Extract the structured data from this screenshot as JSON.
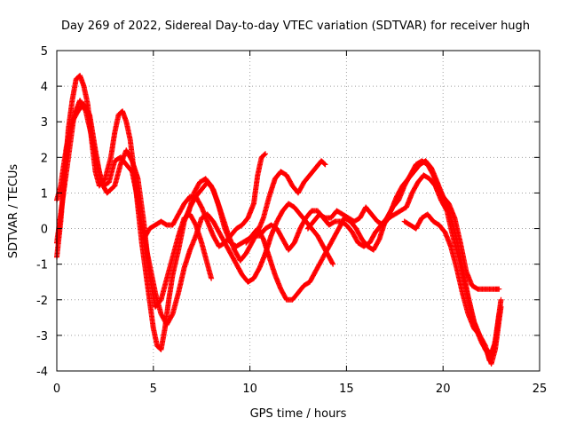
{
  "chart_data": {
    "type": "scatter",
    "title": "Day 269 of 2022, Sidereal Day-to-day VTEC variation (SDTVAR) for receiver hugh",
    "xlabel": "GPS time / hours",
    "ylabel": "SDTVAR / TECUs",
    "xlim": [
      0,
      25
    ],
    "ylim": [
      -4,
      5
    ],
    "xticks": [
      "0",
      "5",
      "10",
      "15",
      "20",
      "25"
    ],
    "yticks": [
      "-4",
      "-3",
      "-2",
      "-1",
      "0",
      "1",
      "2",
      "3",
      "4",
      "5"
    ],
    "grid": true,
    "legend": "none",
    "marker": "+",
    "color": "#ff0000",
    "series": [
      {
        "name": "track-1",
        "points": [
          [
            0.0,
            -0.8
          ],
          [
            0.2,
            0.2
          ],
          [
            0.4,
            1.5
          ],
          [
            0.6,
            2.8
          ],
          [
            0.8,
            3.6
          ],
          [
            1.0,
            4.2
          ],
          [
            1.2,
            4.3
          ],
          [
            1.4,
            4.0
          ],
          [
            1.6,
            3.5
          ],
          [
            1.8,
            2.5
          ],
          [
            2.0,
            1.6
          ],
          [
            2.2,
            1.2
          ],
          [
            2.5,
            1.4
          ],
          [
            2.8,
            2.0
          ],
          [
            3.0,
            2.7
          ],
          [
            3.2,
            3.2
          ],
          [
            3.4,
            3.3
          ],
          [
            3.6,
            3.0
          ],
          [
            3.8,
            2.5
          ],
          [
            4.0,
            1.6
          ],
          [
            4.2,
            0.6
          ],
          [
            4.4,
            -0.4
          ],
          [
            4.6,
            -1.2
          ],
          [
            4.8,
            -2.0
          ],
          [
            5.0,
            -2.8
          ],
          [
            5.2,
            -3.3
          ],
          [
            5.4,
            -3.4
          ],
          [
            5.6,
            -2.8
          ],
          [
            5.8,
            -2.0
          ],
          [
            6.0,
            -1.3
          ],
          [
            6.3,
            -0.6
          ],
          [
            6.6,
            0.2
          ],
          [
            6.9,
            0.6
          ],
          [
            7.2,
            0.9
          ],
          [
            7.5,
            1.1
          ],
          [
            7.8,
            1.3
          ],
          [
            8.1,
            1.1
          ],
          [
            8.4,
            0.6
          ],
          [
            8.7,
            0.0
          ],
          [
            9.0,
            -0.4
          ],
          [
            9.3,
            -0.5
          ],
          [
            9.6,
            -0.4
          ],
          [
            9.9,
            -0.3
          ],
          [
            10.2,
            -0.2
          ],
          [
            10.5,
            -0.2
          ],
          [
            10.8,
            0.0
          ],
          [
            11.1,
            0.1
          ],
          [
            11.4,
            0.0
          ],
          [
            11.7,
            -0.3
          ],
          [
            12.0,
            -0.6
          ],
          [
            12.3,
            -0.4
          ],
          [
            12.6,
            0.0
          ],
          [
            12.9,
            0.3
          ],
          [
            13.2,
            0.5
          ],
          [
            13.5,
            0.5
          ],
          [
            13.8,
            0.3
          ],
          [
            14.1,
            0.1
          ],
          [
            14.4,
            0.2
          ],
          [
            14.7,
            0.2
          ],
          [
            15.0,
            0.1
          ],
          [
            15.3,
            -0.1
          ],
          [
            15.6,
            -0.4
          ],
          [
            15.9,
            -0.5
          ],
          [
            16.2,
            -0.4
          ],
          [
            16.5,
            -0.1
          ],
          [
            16.8,
            0.1
          ],
          [
            17.1,
            0.3
          ],
          [
            17.4,
            0.6
          ],
          [
            17.7,
            0.8
          ],
          [
            18.0,
            1.2
          ],
          [
            18.3,
            1.5
          ],
          [
            18.6,
            1.8
          ],
          [
            18.9,
            1.9
          ],
          [
            19.2,
            1.8
          ],
          [
            19.5,
            1.5
          ],
          [
            19.8,
            1.1
          ],
          [
            20.1,
            0.8
          ],
          [
            20.4,
            0.3
          ],
          [
            20.7,
            -0.3
          ],
          [
            21.0,
            -1.1
          ],
          [
            21.3,
            -1.9
          ],
          [
            21.6,
            -2.6
          ],
          [
            21.9,
            -3.0
          ],
          [
            22.2,
            -3.3
          ],
          [
            22.4,
            -3.7
          ],
          [
            22.6,
            -3.5
          ],
          [
            22.8,
            -2.8
          ],
          [
            23.0,
            -2.0
          ]
        ]
      },
      {
        "name": "track-2",
        "points": [
          [
            0.0,
            -0.4
          ],
          [
            0.3,
            0.8
          ],
          [
            0.6,
            2.0
          ],
          [
            0.9,
            3.2
          ],
          [
            1.2,
            3.6
          ],
          [
            1.5,
            3.3
          ],
          [
            1.8,
            2.6
          ],
          [
            2.1,
            1.8
          ],
          [
            2.4,
            1.2
          ],
          [
            2.7,
            1.3
          ],
          [
            3.0,
            1.9
          ],
          [
            3.3,
            2.0
          ],
          [
            3.6,
            1.8
          ],
          [
            3.9,
            1.6
          ],
          [
            4.2,
            0.8
          ],
          [
            4.5,
            -0.2
          ],
          [
            4.8,
            -1.0
          ],
          [
            5.1,
            -1.8
          ],
          [
            5.4,
            -2.4
          ],
          [
            5.7,
            -2.7
          ],
          [
            6.0,
            -2.4
          ],
          [
            6.3,
            -1.8
          ],
          [
            6.6,
            -1.1
          ],
          [
            6.9,
            -0.6
          ],
          [
            7.2,
            -0.2
          ],
          [
            7.5,
            0.3
          ],
          [
            7.8,
            0.4
          ],
          [
            8.1,
            0.2
          ],
          [
            8.4,
            -0.1
          ],
          [
            8.7,
            -0.4
          ],
          [
            9.0,
            -0.7
          ],
          [
            9.3,
            -1.0
          ],
          [
            9.6,
            -1.3
          ],
          [
            9.9,
            -1.5
          ],
          [
            10.2,
            -1.4
          ],
          [
            10.5,
            -1.1
          ],
          [
            10.8,
            -0.7
          ],
          [
            11.1,
            -0.2
          ],
          [
            11.4,
            0.2
          ],
          [
            11.7,
            0.5
          ],
          [
            12.0,
            0.7
          ],
          [
            12.3,
            0.6
          ],
          [
            12.6,
            0.4
          ],
          [
            12.9,
            0.2
          ],
          [
            13.2,
            0.0
          ],
          [
            13.5,
            -0.2
          ],
          [
            13.8,
            -0.5
          ],
          [
            14.1,
            -0.8
          ],
          [
            14.3,
            -1.0
          ]
        ]
      },
      {
        "name": "track-3",
        "points": [
          [
            0.0,
            0.8
          ],
          [
            0.2,
            1.2
          ],
          [
            0.5,
            2.3
          ],
          [
            0.8,
            3.0
          ],
          [
            1.1,
            3.3
          ],
          [
            1.4,
            3.5
          ],
          [
            1.7,
            3.2
          ],
          [
            2.0,
            2.2
          ],
          [
            2.3,
            1.3
          ],
          [
            2.6,
            1.0
          ],
          [
            3.0,
            1.2
          ],
          [
            3.3,
            1.8
          ],
          [
            3.6,
            2.2
          ],
          [
            3.9,
            1.9
          ],
          [
            4.2,
            1.4
          ],
          [
            4.5,
            0.2
          ],
          [
            4.8,
            -1.3
          ],
          [
            5.1,
            -2.2
          ],
          [
            5.4,
            -2.0
          ],
          [
            5.7,
            -1.4
          ],
          [
            6.0,
            -0.8
          ],
          [
            6.3,
            -0.2
          ],
          [
            6.6,
            0.3
          ],
          [
            6.9,
            0.4
          ],
          [
            7.2,
            0.1
          ],
          [
            7.5,
            -0.4
          ],
          [
            7.8,
            -1.0
          ],
          [
            8.0,
            -1.4
          ]
        ]
      },
      {
        "name": "track-4",
        "points": [
          [
            4.5,
            -0.3
          ],
          [
            4.8,
            0.0
          ],
          [
            5.1,
            0.1
          ],
          [
            5.4,
            0.2
          ],
          [
            5.7,
            0.1
          ],
          [
            6.0,
            0.1
          ],
          [
            6.3,
            0.4
          ],
          [
            6.6,
            0.7
          ],
          [
            6.9,
            0.9
          ],
          [
            7.2,
            0.9
          ],
          [
            7.5,
            0.6
          ],
          [
            7.8,
            0.2
          ],
          [
            8.1,
            -0.2
          ],
          [
            8.4,
            -0.5
          ],
          [
            8.7,
            -0.4
          ],
          [
            9.0,
            -0.2
          ],
          [
            9.3,
            0.0
          ],
          [
            9.6,
            0.1
          ],
          [
            9.9,
            0.3
          ],
          [
            10.2,
            0.7
          ],
          [
            10.4,
            1.5
          ],
          [
            10.6,
            2.0
          ],
          [
            10.8,
            2.1
          ]
        ]
      },
      {
        "name": "track-5",
        "points": [
          [
            6.8,
            0.4
          ],
          [
            7.1,
            1.0
          ],
          [
            7.4,
            1.3
          ],
          [
            7.7,
            1.4
          ],
          [
            8.0,
            1.2
          ],
          [
            8.3,
            0.8
          ],
          [
            8.6,
            0.3
          ],
          [
            8.9,
            -0.2
          ],
          [
            9.2,
            -0.6
          ],
          [
            9.5,
            -0.9
          ],
          [
            9.8,
            -0.7
          ],
          [
            10.1,
            -0.4
          ],
          [
            10.4,
            -0.1
          ],
          [
            10.7,
            0.3
          ],
          [
            11.0,
            0.9
          ],
          [
            11.3,
            1.4
          ],
          [
            11.6,
            1.6
          ],
          [
            11.9,
            1.5
          ],
          [
            12.2,
            1.2
          ],
          [
            12.5,
            1.0
          ],
          [
            12.8,
            1.3
          ],
          [
            13.1,
            1.5
          ],
          [
            13.4,
            1.7
          ],
          [
            13.7,
            1.9
          ],
          [
            13.9,
            1.8
          ]
        ]
      },
      {
        "name": "track-6",
        "points": [
          [
            9.8,
            -0.4
          ],
          [
            10.1,
            -0.2
          ],
          [
            10.4,
            0.0
          ],
          [
            10.7,
            -0.3
          ],
          [
            11.0,
            -0.8
          ],
          [
            11.3,
            -1.3
          ],
          [
            11.6,
            -1.7
          ],
          [
            11.9,
            -2.0
          ],
          [
            12.2,
            -2.0
          ],
          [
            12.5,
            -1.8
          ],
          [
            12.8,
            -1.6
          ],
          [
            13.1,
            -1.5
          ],
          [
            13.4,
            -1.2
          ],
          [
            13.7,
            -0.9
          ],
          [
            14.0,
            -0.6
          ],
          [
            14.3,
            -0.3
          ],
          [
            14.6,
            0.0
          ],
          [
            14.9,
            0.3
          ],
          [
            15.2,
            0.2
          ],
          [
            15.5,
            0.0
          ],
          [
            15.8,
            -0.3
          ],
          [
            16.1,
            -0.5
          ],
          [
            16.4,
            -0.6
          ],
          [
            16.7,
            -0.3
          ],
          [
            17.0,
            0.2
          ],
          [
            17.3,
            0.5
          ],
          [
            17.6,
            0.9
          ],
          [
            17.9,
            1.2
          ],
          [
            18.2,
            1.4
          ],
          [
            18.5,
            1.6
          ],
          [
            18.8,
            1.8
          ],
          [
            19.1,
            1.9
          ],
          [
            19.4,
            1.7
          ],
          [
            19.7,
            1.3
          ],
          [
            20.0,
            0.9
          ],
          [
            20.3,
            0.7
          ],
          [
            20.6,
            0.3
          ],
          [
            20.9,
            -0.4
          ],
          [
            21.2,
            -1.2
          ],
          [
            21.5,
            -1.6
          ],
          [
            21.8,
            -1.7
          ],
          [
            22.1,
            -1.7
          ],
          [
            22.4,
            -1.7
          ],
          [
            22.7,
            -1.7
          ],
          [
            22.9,
            -1.7
          ]
        ]
      },
      {
        "name": "track-7",
        "points": [
          [
            13.0,
            0.0
          ],
          [
            13.3,
            0.2
          ],
          [
            13.6,
            0.4
          ],
          [
            13.9,
            0.3
          ],
          [
            14.2,
            0.3
          ],
          [
            14.5,
            0.5
          ],
          [
            14.8,
            0.4
          ],
          [
            15.1,
            0.3
          ],
          [
            15.4,
            0.2
          ],
          [
            15.7,
            0.3
          ],
          [
            16.0,
            0.6
          ],
          [
            16.3,
            0.4
          ],
          [
            16.6,
            0.2
          ],
          [
            16.9,
            0.1
          ],
          [
            17.2,
            0.3
          ],
          [
            17.5,
            0.4
          ],
          [
            17.8,
            0.5
          ],
          [
            18.1,
            0.6
          ],
          [
            18.4,
            1.0
          ],
          [
            18.7,
            1.3
          ],
          [
            19.0,
            1.5
          ],
          [
            19.3,
            1.4
          ],
          [
            19.6,
            1.2
          ],
          [
            19.9,
            0.8
          ],
          [
            20.2,
            0.5
          ],
          [
            20.5,
            -0.2
          ],
          [
            20.8,
            -0.8
          ],
          [
            21.1,
            -1.5
          ],
          [
            21.4,
            -2.2
          ],
          [
            21.7,
            -2.8
          ],
          [
            22.0,
            -3.2
          ],
          [
            22.3,
            -3.5
          ],
          [
            22.5,
            -3.8
          ],
          [
            22.7,
            -3.4
          ],
          [
            22.9,
            -2.6
          ],
          [
            23.0,
            -2.2
          ]
        ]
      },
      {
        "name": "track-8",
        "points": [
          [
            18.0,
            0.2
          ],
          [
            18.3,
            0.1
          ],
          [
            18.6,
            0.0
          ],
          [
            18.9,
            0.3
          ],
          [
            19.2,
            0.4
          ],
          [
            19.5,
            0.2
          ],
          [
            19.8,
            0.1
          ],
          [
            20.1,
            -0.1
          ],
          [
            20.4,
            -0.5
          ],
          [
            20.7,
            -1.1
          ],
          [
            21.0,
            -1.8
          ],
          [
            21.3,
            -2.4
          ],
          [
            21.6,
            -2.8
          ],
          [
            21.9,
            -3.0
          ],
          [
            22.2,
            -3.4
          ],
          [
            22.5,
            -3.5
          ],
          [
            22.7,
            -3.2
          ],
          [
            22.9,
            -2.4
          ]
        ]
      }
    ]
  }
}
